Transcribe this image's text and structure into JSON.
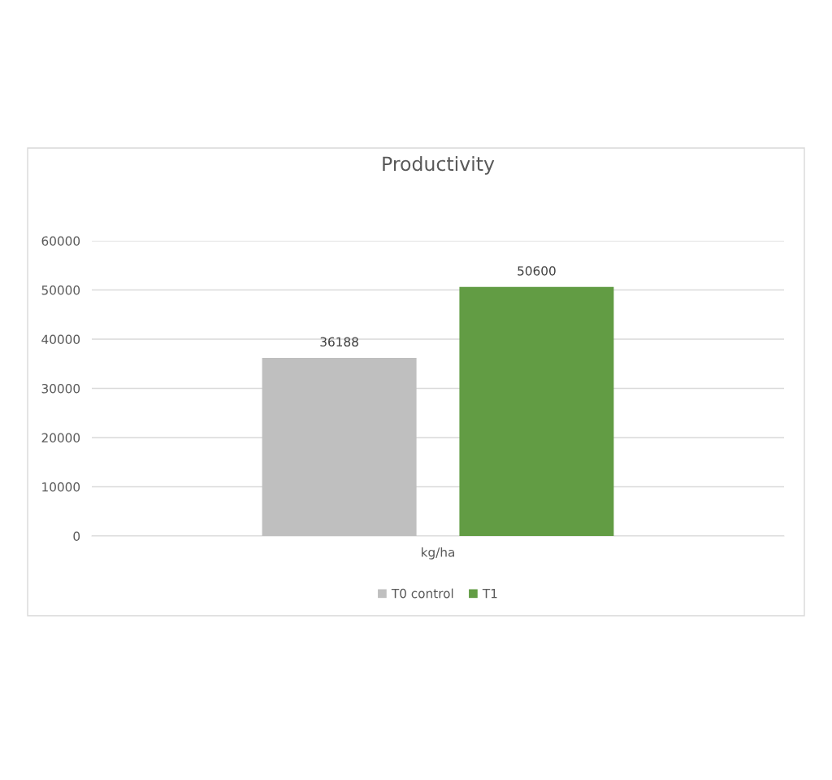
{
  "chart_data": {
    "type": "bar",
    "title": "Productivity",
    "categories": [
      "kg/ha"
    ],
    "series": [
      {
        "name": "T0 control",
        "color": "#bfbfbf",
        "values": [
          36188
        ]
      },
      {
        "name": "T1",
        "color": "#629c44",
        "values": [
          50600
        ]
      }
    ],
    "ylim": [
      0,
      60000
    ],
    "yticks": [
      0,
      10000,
      20000,
      30000,
      40000,
      50000,
      60000
    ],
    "grid": "y",
    "legend": "bottom",
    "data_labels": true
  }
}
